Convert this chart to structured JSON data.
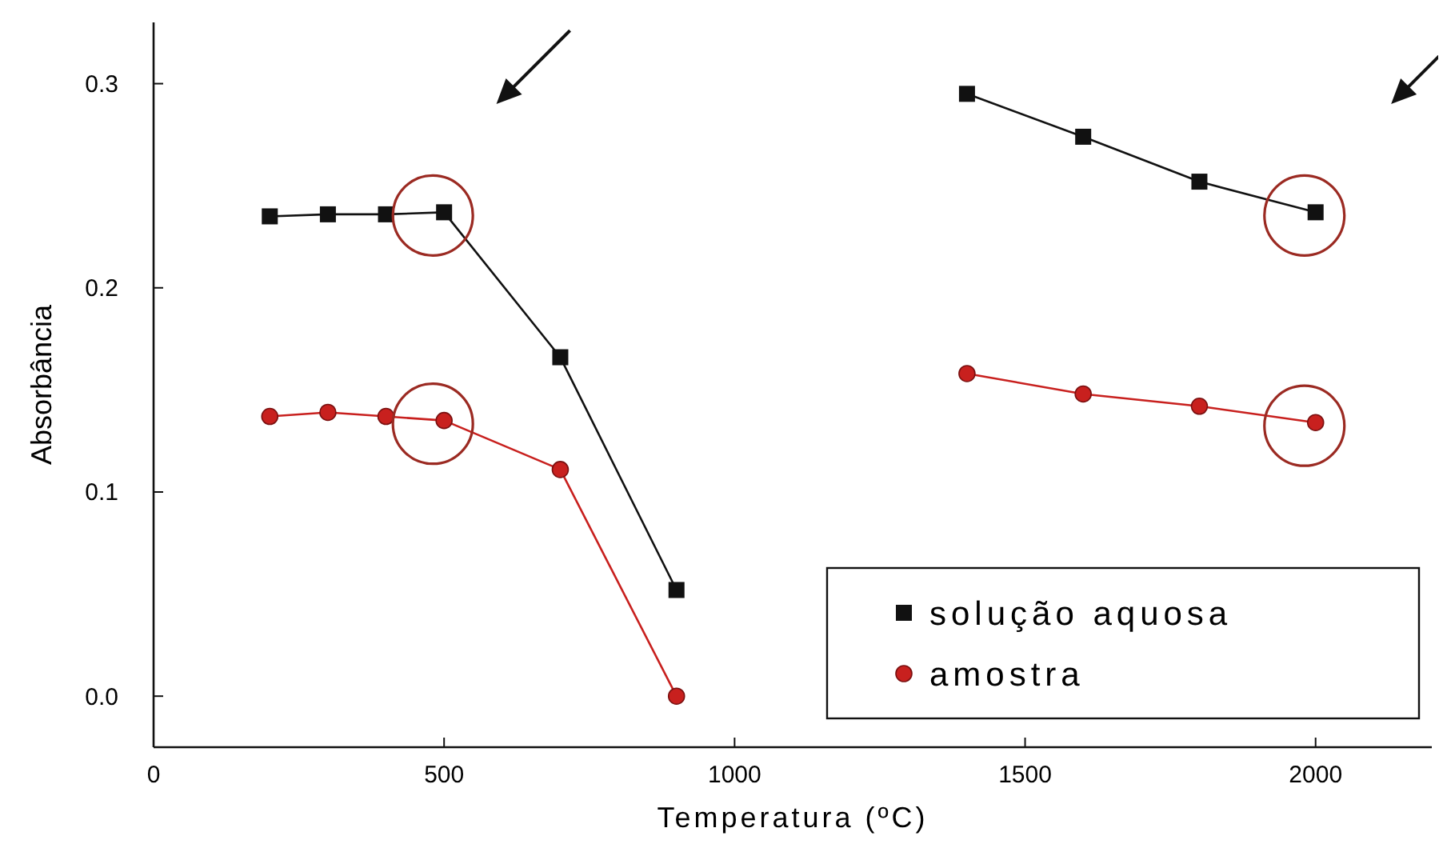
{
  "chart_data": {
    "type": "line",
    "xlabel": "Temperatura (ºC)",
    "ylabel": "Absorbância",
    "x": [
      200,
      300,
      400,
      500,
      700,
      900,
      1150,
      1400,
      1600,
      1800,
      2000
    ],
    "series": [
      {
        "name": "solução aquosa",
        "color": "#111111",
        "marker": "square",
        "values": [
          0.235,
          0.236,
          0.236,
          0.237,
          0.166,
          0.052,
          null,
          0.295,
          0.274,
          0.252,
          0.237
        ]
      },
      {
        "name": "amostra",
        "color": "#c8201e",
        "marker": "circle",
        "values": [
          0.137,
          0.139,
          0.137,
          0.135,
          0.111,
          0,
          null,
          0.158,
          0.148,
          0.142,
          0.134
        ]
      }
    ],
    "xlim": [
      0,
      2200
    ],
    "xticks": [
      0,
      500,
      1000,
      1500,
      2000
    ],
    "ylim": [
      -0.025,
      0.33
    ],
    "yticks": [
      {
        "value": 0,
        "label": "0.0"
      },
      0.1,
      0.2,
      0.3
    ],
    "legend": "bottom right",
    "grid": false,
    "line_style": "solid"
  }
}
